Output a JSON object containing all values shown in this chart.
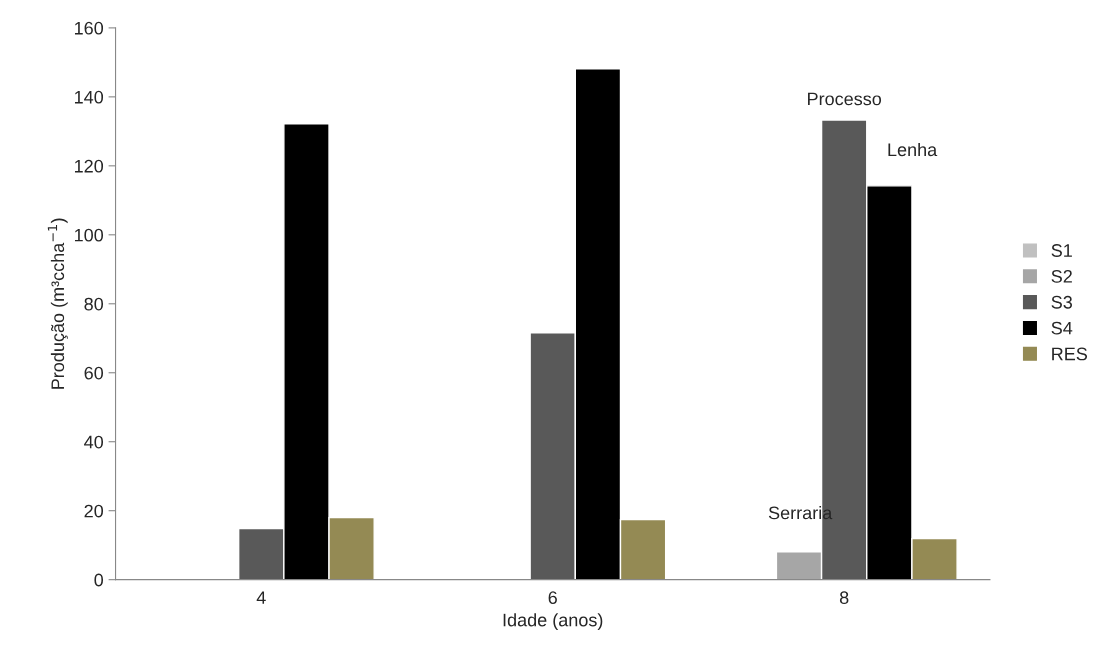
{
  "chart_data": {
    "type": "bar",
    "xlabel": "Idade (anos)",
    "ylabel": "Produção (m³ccha$^{−1}$)",
    "categories": [
      "4",
      "6",
      "8"
    ],
    "series": [
      {
        "name": "S1",
        "color": "#c0c0c0",
        "values": [
          null,
          null,
          null
        ]
      },
      {
        "name": "S2",
        "color": "#a6a6a6",
        "values": [
          null,
          null,
          8.1
        ]
      },
      {
        "name": "S3",
        "color": "#595959",
        "values": [
          14.8,
          71.6,
          133.3
        ]
      },
      {
        "name": "S4",
        "color": "#000000",
        "values": [
          132.2,
          148.1,
          114.2
        ]
      },
      {
        "name": "RES",
        "color": "#948a54",
        "values": [
          18.0,
          17.4,
          11.9
        ]
      }
    ],
    "ylim": [
      0,
      160
    ],
    "yticks": [
      0,
      20,
      40,
      60,
      80,
      100,
      120,
      140,
      160
    ],
    "grid": false,
    "legend": "right",
    "annotations": [
      "Serraria",
      {
        "text": "Processo",
        "x": "8",
        "y": 133.3
      },
      "Lenha"
    ]
  }
}
